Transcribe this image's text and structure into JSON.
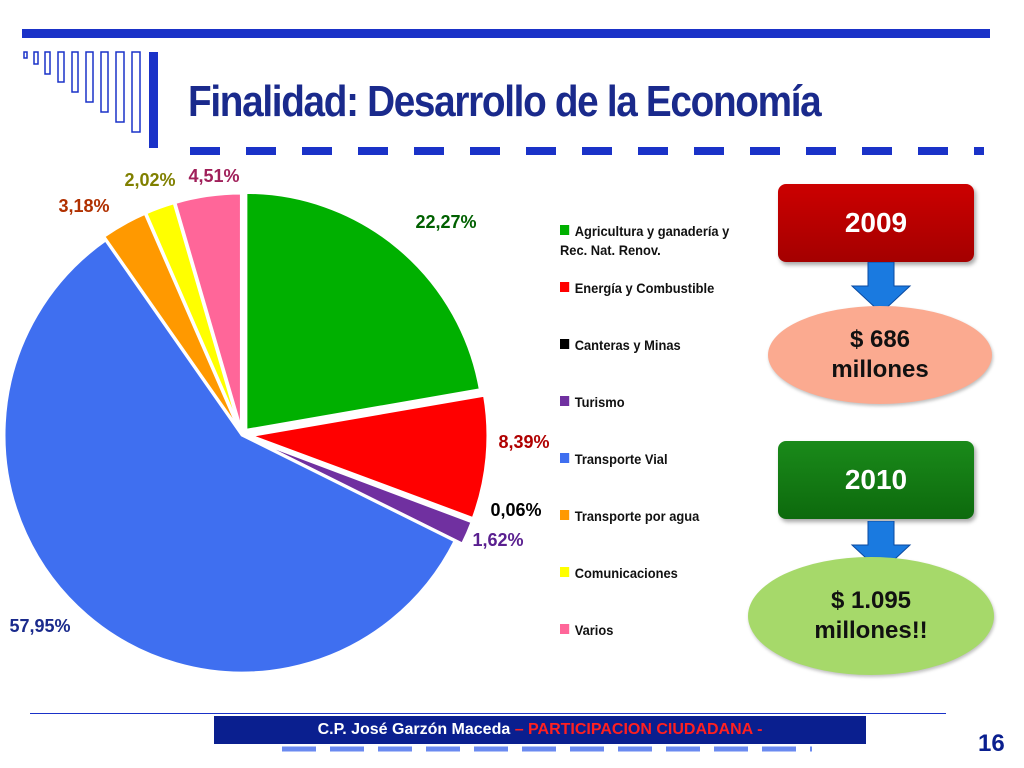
{
  "slide": {
    "title": "Finalidad: Desarrollo de la Economía",
    "page_number": "16"
  },
  "colors": {
    "title": "#1a2a8c",
    "accent_blue": "#1a32c8",
    "box_2009": "#b80000",
    "box_2010": "#137a13",
    "amount_2009_fill": "#fbaa90",
    "amount_2010_fill": "#a6d96a"
  },
  "summary": [
    {
      "year": "2009",
      "amount": "$ 686",
      "unit": "millones"
    },
    {
      "year": "2010",
      "amount": "$ 1.095",
      "unit": "millones!!"
    }
  ],
  "footer": {
    "author": "C.P. José Garzón Maceda",
    "program": " – PARTICIPACION CIUDADANA -"
  },
  "chart_data": {
    "type": "pie",
    "legend_position": "right",
    "slices": [
      {
        "name": "Agricultura y ganadería y Rec. Nat. Renov.",
        "value": 22.27,
        "label": "22,27%",
        "color": "#00b000",
        "label_color": "#006000"
      },
      {
        "name": "Energía y Combustible",
        "value": 8.39,
        "label": "8,39%",
        "color": "#ff0000",
        "label_color": "#b00000"
      },
      {
        "name": "Canteras y Minas",
        "value": 0.06,
        "label": "0,06%",
        "color": "#000000",
        "label_color": "#000000"
      },
      {
        "name": "Turismo",
        "value": 1.62,
        "label": "1,62%",
        "color": "#7030a0",
        "label_color": "#5a2090"
      },
      {
        "name": "Transporte Vial",
        "value": 57.95,
        "label": "57,95%",
        "color": "#3f6ff0",
        "label_color": "#1a2a8c"
      },
      {
        "name": "Transporte por agua",
        "value": 3.18,
        "label": "3,18%",
        "color": "#ff9900",
        "label_color": "#b03000"
      },
      {
        "name": "Comunicaciones",
        "value": 2.02,
        "label": "2,02%",
        "color": "#ffff00",
        "label_color": "#808000"
      },
      {
        "name": "Varios",
        "value": 4.51,
        "label": "4,51%",
        "color": "#ff6699",
        "label_color": "#a0205a"
      }
    ]
  }
}
